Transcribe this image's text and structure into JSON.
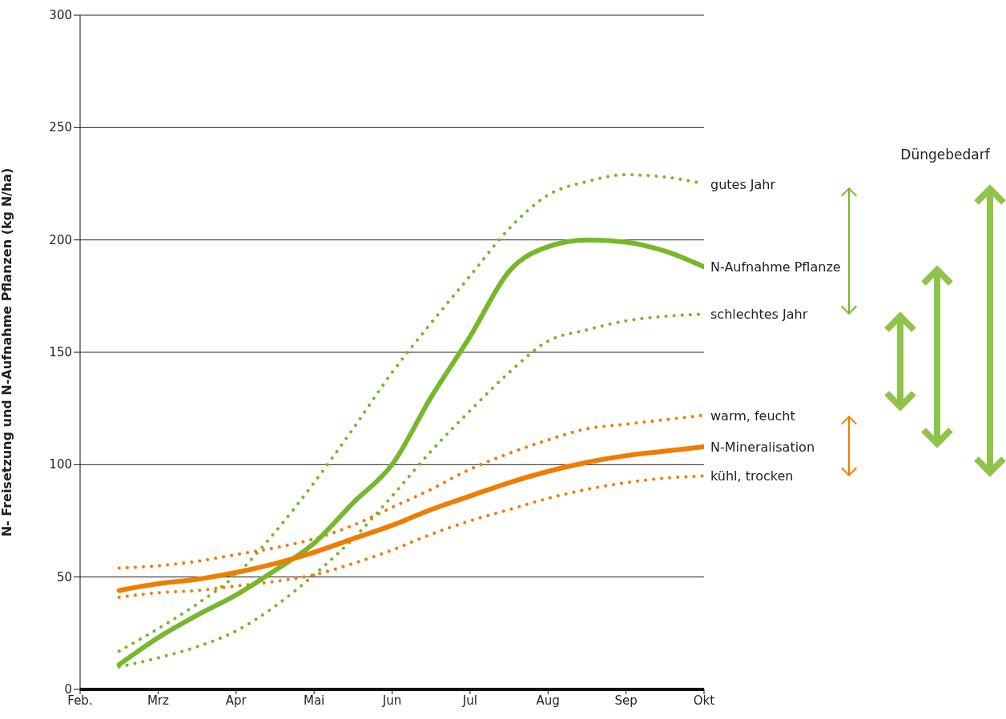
{
  "chart_data": {
    "type": "line",
    "ylabel": "N- Freisetzung und N-Aufnahme Pflanzen (kg N/ha)",
    "annotations": [
      "Düngebedarf"
    ],
    "categories": [
      "Feb.",
      null,
      "Mrz",
      null,
      "Apr",
      null,
      "Mai",
      null,
      "Jun",
      null,
      "Jul",
      null,
      "Aug",
      null,
      "Sep",
      null,
      "Okt"
    ],
    "ylim": [
      0,
      300
    ],
    "yticks": [
      0,
      50,
      100,
      150,
      200,
      250,
      300
    ],
    "grid": "y",
    "legend": "right",
    "series": [
      {
        "name": "gutes Jahr",
        "color": "#76b82a",
        "line_style": "dotted",
        "values": [
          null,
          17,
          27,
          38,
          51,
          70,
          92,
          116,
          141,
          163,
          184,
          205,
          220,
          226,
          229,
          228,
          225
        ]
      },
      {
        "name": "schlechtes Jahr",
        "color": "#76b82a",
        "line_style": "dotted",
        "values": [
          null,
          10,
          14,
          19,
          26,
          37,
          51,
          67,
          86,
          106,
          124,
          141,
          155,
          160,
          164,
          166,
          167
        ]
      },
      {
        "name": "warm, feucht",
        "color": "#ef7d00",
        "line_style": "dotted",
        "values": [
          null,
          54,
          55,
          57,
          60,
          63,
          67,
          73,
          81,
          89,
          98,
          105,
          111,
          116,
          118,
          120,
          122
        ]
      },
      {
        "name": "kühl, trocken",
        "color": "#ef7d00",
        "line_style": "dotted",
        "values": [
          null,
          41,
          43,
          44,
          46,
          48,
          51,
          56,
          62,
          69,
          75,
          80,
          85,
          89,
          92,
          94,
          95
        ]
      },
      {
        "name": "N-Aufnahme Pflanze",
        "color": "#76b82a",
        "line_style": "solid",
        "values": [
          null,
          11,
          23,
          33,
          42,
          53,
          65,
          83,
          100,
          130,
          157,
          186,
          197,
          200,
          199,
          195,
          188
        ]
      },
      {
        "name": "N-Mineralisation",
        "color": "#ef7d00",
        "line_style": "solid",
        "values": [
          null,
          44,
          47,
          49,
          52,
          56,
          61,
          67,
          73,
          80,
          86,
          92,
          97,
          101,
          104,
          106,
          108
        ]
      }
    ]
  }
}
